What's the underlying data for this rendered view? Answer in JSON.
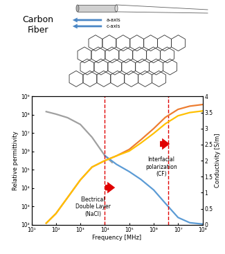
{
  "diagram": {
    "label": "Carbon\nFiber",
    "axis_labels": [
      "a-axis",
      "c-axis"
    ]
  },
  "chart_data": {
    "type": "line",
    "log": true,
    "xlabel": "Frequency [MHz]",
    "ylabel": "Relative permittivity",
    "y2label": "Conductivity [S/m]",
    "xlim": [
      10,
      100000000
    ],
    "ylim": [
      100,
      1000000000
    ],
    "y2lim": [
      0,
      4
    ],
    "xticks": [
      {
        "value": 10,
        "label": "10¹"
      },
      {
        "value": 100,
        "label": "10²"
      },
      {
        "value": 1000,
        "label": "10³"
      },
      {
        "value": 10000,
        "label": "10⁴"
      },
      {
        "value": 100000,
        "label": "10⁵"
      },
      {
        "value": 1000000,
        "label": "10⁶"
      },
      {
        "value": 10000000,
        "label": "10⁷"
      },
      {
        "value": 100000000,
        "label": "10⁸"
      }
    ],
    "yticks": [
      {
        "value": 100,
        "label": "10²"
      },
      {
        "value": 1000,
        "label": "10³"
      },
      {
        "value": 10000,
        "label": "10⁴"
      },
      {
        "value": 100000,
        "label": "10⁵"
      },
      {
        "value": 1000000,
        "label": "10⁶"
      },
      {
        "value": 10000000,
        "label": "10⁷"
      },
      {
        "value": 100000000,
        "label": "10⁸"
      },
      {
        "value": 1000000000,
        "label": "10⁹"
      }
    ],
    "y2ticks": [
      0,
      0.5,
      1,
      1.5,
      2,
      2.5,
      3,
      3.5,
      4
    ],
    "vlines": [
      10000,
      4000000
    ],
    "annotations": [
      {
        "text": "Electrical\nDouble Layer\n(NaCl)"
      },
      {
        "text": "Interfacial\npolarization\n(CF)"
      }
    ],
    "series": [
      {
        "color": "#a0a0a0",
        "axis": "y",
        "x": [
          40,
          100,
          300,
          1000,
          3000,
          10000,
          20000
        ],
        "values": [
          150000000,
          110000000,
          70000000,
          30000000,
          6000000,
          600000,
          250000
        ]
      },
      {
        "color": "#5b9bd5",
        "axis": "y",
        "x": [
          10000,
          30000,
          100000,
          300000,
          1000000,
          3000000,
          10000000,
          30000000,
          100000000
        ],
        "values": [
          600000,
          200000,
          80000,
          30000,
          8000,
          1500,
          250,
          130,
          110
        ]
      },
      {
        "color": "#ed7d31",
        "axis": "y2",
        "x": [
          40,
          100,
          300,
          1000,
          3000,
          10000,
          30000,
          100000,
          300000,
          1000000,
          3000000,
          10000000,
          30000000,
          100000000
        ],
        "values": [
          0.05,
          0.35,
          0.85,
          1.4,
          1.8,
          2.0,
          2.15,
          2.35,
          2.65,
          3.0,
          3.35,
          3.6,
          3.7,
          3.75
        ]
      },
      {
        "color": "#ffc000",
        "axis": "y2",
        "x": [
          40,
          100,
          300,
          1000,
          3000,
          10000,
          30000,
          100000,
          300000,
          1000000,
          3000000,
          10000000,
          30000000,
          100000000
        ],
        "values": [
          0.05,
          0.35,
          0.85,
          1.4,
          1.8,
          2.0,
          2.15,
          2.3,
          2.55,
          2.85,
          3.15,
          3.4,
          3.5,
          3.55
        ]
      }
    ]
  }
}
